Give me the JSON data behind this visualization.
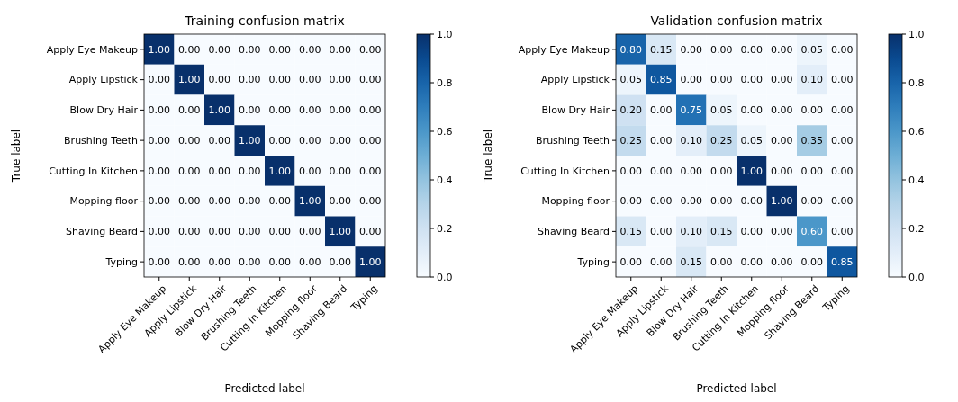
{
  "chart_data": [
    {
      "type": "heatmap",
      "title": "Training confusion matrix",
      "xlabel": "Predicted label",
      "ylabel": "True label",
      "categories": [
        "Apply Eye Makeup",
        "Apply Lipstick",
        "Blow Dry Hair",
        "Brushing Teeth",
        "Cutting In Kitchen",
        "Mopping floor",
        "Shaving Beard",
        "Typing"
      ],
      "y_categories": [
        "Apply Eye Makeup",
        "Apply Lipstick",
        "Blow Dry Hair",
        "Brushing Teeth",
        "Cutting In Kitchen",
        "Mopping floor",
        "Shaving Beard",
        "Typing"
      ],
      "cells": [
        [
          1,
          0,
          0,
          0,
          0,
          0,
          0,
          0
        ],
        [
          0,
          1,
          0,
          0,
          0,
          0,
          0,
          0
        ],
        [
          0,
          0,
          1,
          0,
          0,
          0,
          0,
          0
        ],
        [
          0,
          0,
          0,
          1,
          0,
          0,
          0,
          0
        ],
        [
          0,
          0,
          0,
          0,
          1,
          0,
          0,
          0
        ],
        [
          0,
          0,
          0,
          0,
          0,
          1,
          0,
          0
        ],
        [
          0,
          0,
          0,
          0,
          0,
          0,
          1,
          0
        ],
        [
          0,
          0,
          0,
          0,
          0,
          0,
          0,
          1
        ]
      ],
      "cell_labels": [
        [
          "1.00",
          "0.00",
          "0.00",
          "0.00",
          "0.00",
          "0.00",
          "0.00",
          "0.00"
        ],
        [
          "0.00",
          "1.00",
          "0.00",
          "0.00",
          "0.00",
          "0.00",
          "0.00",
          "0.00"
        ],
        [
          "0.00",
          "0.00",
          "1.00",
          "0.00",
          "0.00",
          "0.00",
          "0.00",
          "0.00"
        ],
        [
          "0.00",
          "0.00",
          "0.00",
          "1.00",
          "0.00",
          "0.00",
          "0.00",
          "0.00"
        ],
        [
          "0.00",
          "0.00",
          "0.00",
          "0.00",
          "1.00",
          "0.00",
          "0.00",
          "0.00"
        ],
        [
          "0.00",
          "0.00",
          "0.00",
          "0.00",
          "0.00",
          "1.00",
          "0.00",
          "0.00"
        ],
        [
          "0.00",
          "0.00",
          "0.00",
          "0.00",
          "0.00",
          "0.00",
          "1.00",
          "0.00"
        ],
        [
          "0.00",
          "0.00",
          "0.00",
          "0.00",
          "0.00",
          "0.00",
          "0.00",
          "1.00"
        ]
      ],
      "clim": [
        0,
        1
      ],
      "cticks": [
        {
          "value": 0,
          "label": "0.0"
        },
        {
          "value": 0.2,
          "label": "0.2"
        },
        {
          "value": 0.4,
          "label": "0.4"
        },
        {
          "value": 0.6,
          "label": "0.6"
        },
        {
          "value": 0.8,
          "label": "0.8"
        },
        {
          "value": 1,
          "label": "1.0"
        }
      ]
    },
    {
      "type": "heatmap",
      "title": "Validation confusion matrix",
      "xlabel": "Predicted label",
      "ylabel": "True label",
      "categories": [
        "Apply Eye Makeup",
        "Apply Lipstick",
        "Blow Dry Hair",
        "Brushing Teeth",
        "Cutting In Kitchen",
        "Mopping floor",
        "Shaving Beard",
        "Typing"
      ],
      "y_categories": [
        "Apply Eye Makeup",
        "Apply Lipstick",
        "Blow Dry Hair",
        "Brushing Teeth",
        "Cutting In Kitchen",
        "Mopping floor",
        "Shaving Beard",
        "Typing"
      ],
      "cells": [
        [
          0.8,
          0.15,
          0,
          0,
          0,
          0,
          0.05,
          0
        ],
        [
          0.05,
          0.85,
          0,
          0,
          0,
          0,
          0.1,
          0
        ],
        [
          0.2,
          0,
          0.75,
          0.05,
          0,
          0,
          0,
          0
        ],
        [
          0.25,
          0,
          0.1,
          0.25,
          0.05,
          0,
          0.35,
          0
        ],
        [
          0,
          0,
          0,
          0,
          1,
          0,
          0,
          0
        ],
        [
          0,
          0,
          0,
          0,
          0,
          1,
          0,
          0
        ],
        [
          0.15,
          0,
          0.1,
          0.15,
          0,
          0,
          0.6,
          0
        ],
        [
          0,
          0,
          0.15,
          0,
          0,
          0,
          0,
          0.85
        ]
      ],
      "cell_labels": [
        [
          "0.80",
          "0.15",
          "0.00",
          "0.00",
          "0.00",
          "0.00",
          "0.05",
          "0.00"
        ],
        [
          "0.05",
          "0.85",
          "0.00",
          "0.00",
          "0.00",
          "0.00",
          "0.10",
          "0.00"
        ],
        [
          "0.20",
          "0.00",
          "0.75",
          "0.05",
          "0.00",
          "0.00",
          "0.00",
          "0.00"
        ],
        [
          "0.25",
          "0.00",
          "0.10",
          "0.25",
          "0.05",
          "0.00",
          "0.35",
          "0.00"
        ],
        [
          "0.00",
          "0.00",
          "0.00",
          "0.00",
          "1.00",
          "0.00",
          "0.00",
          "0.00"
        ],
        [
          "0.00",
          "0.00",
          "0.00",
          "0.00",
          "0.00",
          "1.00",
          "0.00",
          "0.00"
        ],
        [
          "0.15",
          "0.00",
          "0.10",
          "0.15",
          "0.00",
          "0.00",
          "0.60",
          "0.00"
        ],
        [
          "0.00",
          "0.00",
          "0.15",
          "0.00",
          "0.00",
          "0.00",
          "0.00",
          "0.85"
        ]
      ],
      "clim": [
        0,
        1
      ],
      "cticks": [
        {
          "value": 0,
          "label": "0.0"
        },
        {
          "value": 0.2,
          "label": "0.2"
        },
        {
          "value": 0.4,
          "label": "0.4"
        },
        {
          "value": 0.6,
          "label": "0.6"
        },
        {
          "value": 0.8,
          "label": "0.8"
        },
        {
          "value": 1,
          "label": "1.0"
        }
      ]
    }
  ]
}
